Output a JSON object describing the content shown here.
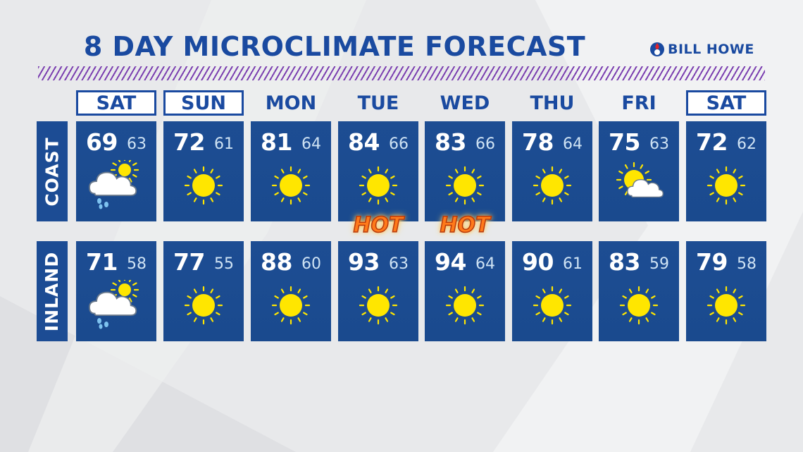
{
  "title": "8 DAY MICROCLIMATE FORECAST",
  "logo": {
    "text": "BILL HOWE"
  },
  "days": [
    "SAT",
    "SUN",
    "MON",
    "TUE",
    "WED",
    "THU",
    "FRI",
    "SAT"
  ],
  "boxed_days": [
    0,
    1,
    7
  ],
  "regions": [
    {
      "label": "COAST",
      "forecast": [
        {
          "hi": "69",
          "lo": "63",
          "icon": "rain-cloud-sun-icon"
        },
        {
          "hi": "72",
          "lo": "61",
          "icon": "sun-icon"
        },
        {
          "hi": "81",
          "lo": "64",
          "icon": "sun-icon"
        },
        {
          "hi": "84",
          "lo": "66",
          "icon": "sun-icon"
        },
        {
          "hi": "83",
          "lo": "66",
          "icon": "sun-icon"
        },
        {
          "hi": "78",
          "lo": "64",
          "icon": "sun-icon"
        },
        {
          "hi": "75",
          "lo": "63",
          "icon": "partly-cloudy-icon"
        },
        {
          "hi": "72",
          "lo": "62",
          "icon": "sun-icon"
        }
      ]
    },
    {
      "label": "INLAND",
      "forecast": [
        {
          "hi": "71",
          "lo": "58",
          "icon": "rain-cloud-sun-icon"
        },
        {
          "hi": "77",
          "lo": "55",
          "icon": "sun-icon"
        },
        {
          "hi": "88",
          "lo": "60",
          "icon": "sun-icon"
        },
        {
          "hi": "93",
          "lo": "63",
          "icon": "sun-icon"
        },
        {
          "hi": "94",
          "lo": "64",
          "icon": "sun-icon"
        },
        {
          "hi": "90",
          "lo": "61",
          "icon": "sun-icon"
        },
        {
          "hi": "83",
          "lo": "59",
          "icon": "sun-icon"
        },
        {
          "hi": "79",
          "lo": "58",
          "icon": "sun-icon"
        }
      ]
    }
  ],
  "hot_labels": [
    {
      "text": "HOT",
      "day_index": 3
    },
    {
      "text": "HOT",
      "day_index": 4
    }
  ],
  "colors": {
    "brand_blue": "#1a4aa0",
    "card_blue": "#1d4d93",
    "accent_purple": "#7b3fb0",
    "sun_yellow": "#ffe600",
    "hot_orange": "#ff7a1a"
  }
}
